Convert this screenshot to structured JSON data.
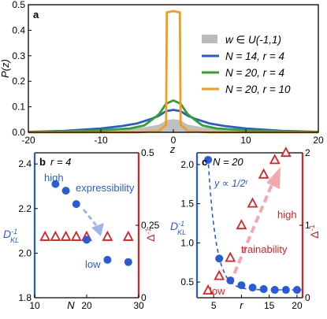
{
  "chart_data": [
    {
      "panel": "a",
      "type": "line",
      "xlabel": "z",
      "ylabel": "P(z)",
      "xlim": [
        -20,
        20
      ],
      "ylim": [
        0,
        0.5
      ],
      "xticks": [
        -20,
        -10,
        0,
        10,
        20
      ],
      "yticks": [
        0,
        0.1,
        0.2,
        0.3,
        0.4,
        0.5
      ],
      "xtick_labels": [
        "-20",
        "-10",
        "0",
        "10",
        "20"
      ],
      "ytick_labels": [
        "0.0",
        "0.1",
        "0.2",
        "0.3",
        "0.4",
        "0.5"
      ],
      "legend_position": "right",
      "series": [
        {
          "name": "w ∈ U(-1,1)",
          "kind": "area",
          "color": "#b4b4b4",
          "x": [
            -20,
            -15,
            -10,
            -6,
            -4,
            -3,
            -2,
            -1,
            0,
            1,
            2,
            3,
            4,
            6,
            10,
            15,
            20
          ],
          "y": [
            0.001,
            0.003,
            0.008,
            0.015,
            0.02,
            0.025,
            0.03,
            0.047,
            0.052,
            0.047,
            0.03,
            0.025,
            0.02,
            0.015,
            0.008,
            0.003,
            0.001
          ]
        },
        {
          "name": "N = 14, r = 4",
          "kind": "line",
          "color": "#2a5bd7",
          "x": [
            -20,
            -15,
            -10,
            -7,
            -5,
            -3,
            -2,
            -1,
            0,
            1,
            2,
            3,
            5,
            7,
            10,
            15,
            20
          ],
          "y": [
            0.002,
            0.006,
            0.015,
            0.025,
            0.035,
            0.053,
            0.065,
            0.083,
            0.088,
            0.083,
            0.065,
            0.053,
            0.035,
            0.025,
            0.015,
            0.006,
            0.002
          ]
        },
        {
          "name": "N = 20, r = 4",
          "kind": "line",
          "color": "#33a02c",
          "x": [
            -20,
            -15,
            -10,
            -6,
            -4,
            -2,
            -1,
            0,
            1,
            2,
            4,
            6,
            10,
            15,
            20
          ],
          "y": [
            0.001,
            0.003,
            0.008,
            0.015,
            0.027,
            0.07,
            0.112,
            0.125,
            0.112,
            0.07,
            0.027,
            0.015,
            0.008,
            0.003,
            0.001
          ]
        },
        {
          "name": "N = 20, r = 10",
          "kind": "line",
          "color": "#f39c1f",
          "x": [
            -20,
            -5,
            -2,
            -1,
            -0.9,
            0,
            0.9,
            1,
            2,
            5,
            20
          ],
          "y": [
            0,
            0,
            0.005,
            0.03,
            0.47,
            0.475,
            0.47,
            0.03,
            0.005,
            0,
            0
          ]
        }
      ]
    },
    {
      "panel": "b",
      "type": "scatter",
      "title": "r = 4",
      "xlabel": "N",
      "ylabel_left": "D_KL^-1",
      "ylabel_right": "Δ^-1",
      "xlim": [
        10,
        30
      ],
      "ylim_left": [
        1.8,
        2.45
      ],
      "ylim_right": [
        0,
        0.5
      ],
      "xticks": [
        10,
        20,
        30
      ],
      "yticks_left": [
        1.8,
        2.0,
        2.2,
        2.4
      ],
      "yticks_right": [
        0,
        0.25,
        0.5
      ],
      "left_axis_color": "#2a5bd7",
      "right_axis_color": "#e02020",
      "series": [
        {
          "name": "D_KL^-1",
          "marker": "circle",
          "color": "#2a5bd7",
          "axis": "left",
          "x": [
            14,
            16,
            18,
            20,
            24,
            28
          ],
          "y": [
            2.31,
            2.28,
            2.22,
            2.06,
            1.97,
            1.96
          ]
        },
        {
          "name": "Δ^-1",
          "marker": "triangle",
          "color": "#e02020",
          "axis": "right",
          "x": [
            12,
            14,
            16,
            18,
            20,
            24,
            28
          ],
          "y": [
            0.21,
            0.21,
            0.21,
            0.21,
            0.21,
            0.21,
            0.21
          ]
        }
      ],
      "annotations": {
        "top": "high",
        "middle": "expressibility",
        "bottom": "low"
      }
    },
    {
      "panel": "c",
      "type": "scatter",
      "title": "N = 20",
      "xlabel": "r",
      "ylabel_left": "D_KL^-1",
      "ylabel_right": "Δ^-1",
      "xlim": [
        2,
        21
      ],
      "ylim_left": [
        0.3,
        2.15
      ],
      "ylim_right": [
        0,
        2
      ],
      "xticks": [
        5,
        10,
        15,
        20
      ],
      "yticks_left": [
        0.5,
        1.0,
        1.5,
        2.0
      ],
      "yticks_right": [
        0,
        1,
        2
      ],
      "left_axis_color": "#2a5bd7",
      "right_axis_color": "#e02020",
      "series": [
        {
          "name": "D_KL^-1",
          "marker": "circle",
          "color": "#2a5bd7",
          "axis": "left",
          "x": [
            4,
            6,
            8,
            10,
            12,
            14,
            16,
            18,
            20
          ],
          "y": [
            2.06,
            0.8,
            0.52,
            0.46,
            0.43,
            0.41,
            0.4,
            0.4,
            0.4
          ]
        },
        {
          "name": "Δ^-1",
          "marker": "triangle",
          "color": "#e02020",
          "axis": "right",
          "x": [
            4,
            6,
            8,
            10,
            12,
            14,
            16,
            18
          ],
          "y": [
            0.1,
            0.3,
            0.55,
            1.0,
            1.3,
            1.7,
            1.9,
            2.0
          ]
        }
      ],
      "annotations": {
        "fit": "y ∝ 1/2ʳ",
        "middle": "trainability",
        "top": "high",
        "bottom": "low"
      }
    }
  ],
  "labels": {
    "panel_a": "a",
    "panel_b": "b",
    "panel_c": "c"
  }
}
